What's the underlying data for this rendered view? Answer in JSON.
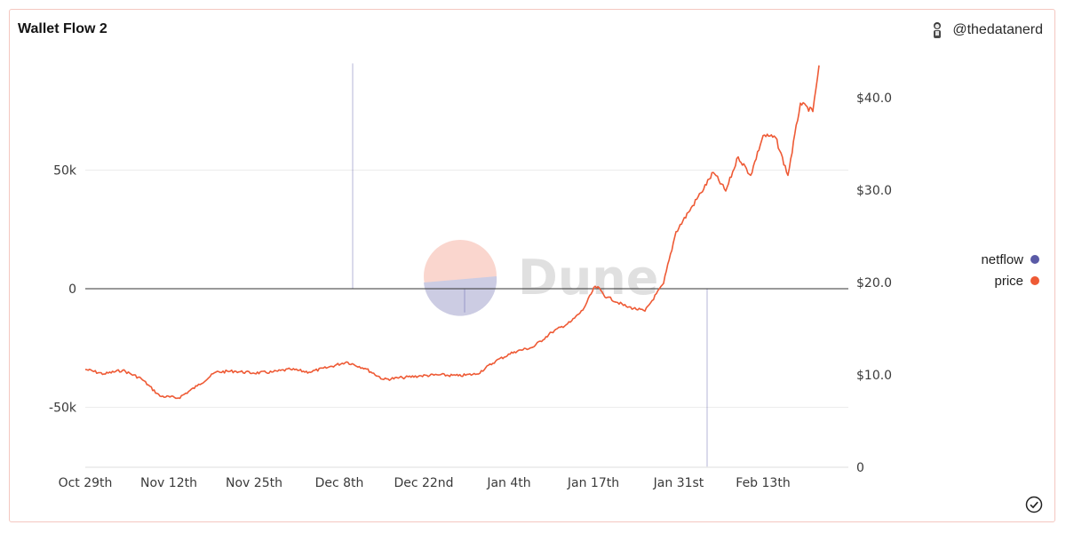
{
  "header": {
    "title": "Wallet Flow 2",
    "author": "@thedatanerd"
  },
  "legend": [
    {
      "label": "netflow",
      "color": "#5a5aa6"
    },
    {
      "label": "price",
      "color": "#ee5a35"
    }
  ],
  "watermark": "Dune",
  "icons": {
    "author": "user-avatar-icon",
    "status": "check-circle-icon"
  },
  "chart_data": {
    "type": "line",
    "title": "Wallet Flow 2",
    "x_tick_labels": [
      "Oct 29th",
      "Nov 12th",
      "Nov 25th",
      "Dec 8th",
      "Dec 22nd",
      "Jan 4th",
      "Jan 17th",
      "Jan 31st",
      "Feb 13th"
    ],
    "y_left": {
      "ticks": [
        -50000,
        0,
        50000
      ],
      "tick_labels": [
        "-50k",
        "0",
        "50k"
      ],
      "range": [
        -75000,
        95000
      ]
    },
    "y_right": {
      "ticks": [
        0,
        10,
        20,
        30,
        40
      ],
      "tick_labels": [
        "0",
        "$10.0",
        "$20.0",
        "$30.0",
        "$40.0"
      ],
      "range": [
        0,
        43.5
      ]
    },
    "grid": true,
    "legend_position": "right",
    "series": [
      {
        "name": "netflow",
        "axis": "left",
        "color": "#5a5aa6",
        "points": [
          {
            "x": "Dec 11th",
            "y": 95000
          },
          {
            "x": "Dec 29th",
            "y": -10000
          },
          {
            "x": "Feb 6th",
            "y": -75000
          }
        ]
      },
      {
        "name": "price",
        "axis": "right",
        "color": "#ee5a35",
        "x": [
          "Oct 29th",
          "Nov 1st",
          "Nov 4th",
          "Nov 7th",
          "Nov 10th",
          "Nov 13th",
          "Nov 16th",
          "Nov 19th",
          "Nov 22nd",
          "Nov 25th",
          "Nov 28th",
          "Dec 1st",
          "Dec 4th",
          "Dec 7th",
          "Dec 10th",
          "Dec 13th",
          "Dec 16th",
          "Dec 19th",
          "Dec 22nd",
          "Dec 25th",
          "Dec 28th",
          "Dec 31st",
          "Jan 3rd",
          "Jan 6th",
          "Jan 9th",
          "Jan 12th",
          "Jan 15th",
          "Jan 17th",
          "Jan 19th",
          "Jan 21st",
          "Jan 24th",
          "Jan 27th",
          "Jan 30th",
          "Feb 1st",
          "Feb 3rd",
          "Feb 5th",
          "Feb 7th",
          "Feb 9th",
          "Feb 11th",
          "Feb 13th",
          "Feb 15th",
          "Feb 17th",
          "Feb 19th",
          "Feb 21st",
          "Feb 23rd",
          "Feb 24th"
        ],
        "values": [
          10.6,
          10.1,
          10.5,
          9.6,
          7.7,
          7.5,
          8.8,
          10.3,
          10.4,
          10.2,
          10.3,
          10.6,
          10.3,
          10.8,
          11.4,
          10.7,
          9.5,
          9.7,
          9.9,
          10.0,
          9.9,
          10.1,
          11.5,
          12.5,
          13.0,
          14.6,
          15.7,
          17.0,
          19.6,
          18.4,
          17.4,
          16.9,
          19.9,
          25.5,
          27.6,
          29.7,
          31.9,
          29.9,
          33.6,
          31.6,
          35.9,
          35.7,
          31.6,
          39.4,
          38.5,
          43.5
        ]
      }
    ]
  }
}
